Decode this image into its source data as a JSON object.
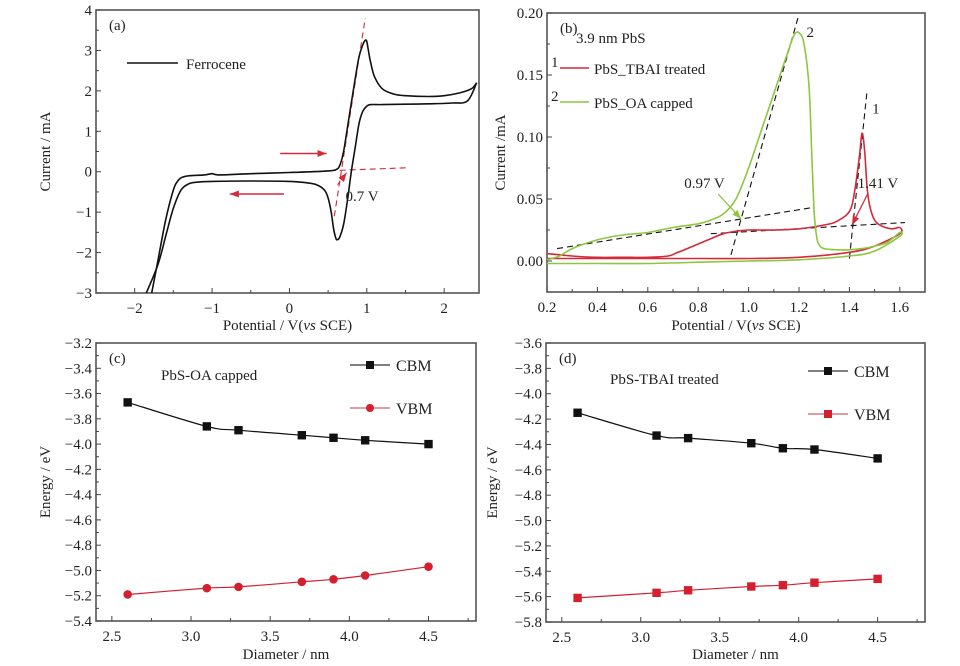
{
  "chart_data": [
    {
      "id": "a",
      "type": "line",
      "panel_label": "(a)",
      "xlabel": "Potential / V(vs SCE)",
      "xlabel_parts": [
        "Potential / V(",
        "vs",
        " SCE)"
      ],
      "ylabel": "Current / mA",
      "xlim": [
        -2.5,
        2.45
      ],
      "ylim": [
        -3,
        4
      ],
      "xticks": [
        -2,
        -1,
        0,
        1,
        2
      ],
      "xtick_labels": [
        "−2",
        "−1",
        "0",
        "1",
        "2"
      ],
      "xminor": [
        -1.5,
        -0.5,
        0.5,
        1.5
      ],
      "yticks": [
        -3,
        -2,
        -1,
        0,
        1,
        2,
        3,
        4
      ],
      "ytick_labels": [
        "−3",
        "−2",
        "−1",
        "0",
        "1",
        "2",
        "3",
        "4"
      ],
      "yminor": [
        -2.5,
        -1.5,
        -0.5,
        0.5,
        1.5,
        2.5,
        3.5
      ],
      "legend": [
        {
          "label": "Ferrocene",
          "color": "#111111"
        }
      ],
      "legend_position": "top-left",
      "series": [
        {
          "name": "Ferrocene forward scan",
          "color": "#111111",
          "x": [
            -1.78,
            -1.7,
            -1.6,
            -1.5,
            -1.45,
            -1.4,
            -1.3,
            -1.1,
            -1.0,
            -0.9,
            -0.5,
            0.0,
            0.3,
            0.5,
            0.6,
            0.65,
            0.7,
            0.75,
            0.8,
            0.85,
            0.9,
            0.95,
            0.98,
            1.0,
            1.02,
            1.05,
            1.1,
            1.2,
            1.35,
            1.5,
            1.8,
            2.0,
            2.2,
            2.35,
            2.42
          ],
          "y": [
            -3.0,
            -2.2,
            -1.2,
            -0.45,
            -0.25,
            -0.15,
            -0.1,
            -0.08,
            -0.05,
            -0.08,
            -0.05,
            -0.02,
            0.0,
            0.02,
            0.05,
            0.15,
            0.5,
            1.1,
            1.7,
            2.3,
            2.85,
            3.15,
            3.25,
            3.22,
            3.0,
            2.7,
            2.35,
            2.05,
            1.92,
            1.88,
            1.86,
            1.88,
            1.95,
            2.05,
            2.2
          ]
        },
        {
          "name": "Ferrocene reverse scan",
          "color": "#111111",
          "x": [
            2.42,
            2.3,
            2.1,
            1.8,
            1.5,
            1.2,
            1.05,
            1.0,
            0.95,
            0.9,
            0.85,
            0.8,
            0.75,
            0.7,
            0.65,
            0.62,
            0.6,
            0.57,
            0.54,
            0.5,
            0.45,
            0.35,
            0.2,
            0.0,
            -0.5,
            -1.0,
            -1.2,
            -1.3,
            -1.4,
            -1.5,
            -1.6,
            -1.7,
            -1.85
          ],
          "y": [
            2.2,
            1.75,
            1.7,
            1.68,
            1.67,
            1.66,
            1.66,
            1.62,
            1.5,
            1.2,
            0.6,
            0.0,
            -0.7,
            -1.3,
            -1.62,
            -1.68,
            -1.65,
            -1.4,
            -1.0,
            -0.65,
            -0.45,
            -0.32,
            -0.27,
            -0.24,
            -0.23,
            -0.24,
            -0.26,
            -0.3,
            -0.45,
            -0.9,
            -1.6,
            -2.3,
            -3.0
          ]
        }
      ],
      "annotations": [
        {
          "text": "0.7 V",
          "x": 0.7,
          "y": 0.05,
          "label_x": 0.88,
          "label_y": -0.62,
          "color": "#d42a3a"
        }
      ],
      "tangent_lines": [
        {
          "x": [
            0.58,
            0.98
          ],
          "y": [
            -1.1,
            3.8
          ],
          "color": "#d42a3a"
        },
        {
          "x": [
            -0.9,
            1.55
          ],
          "y": [
            -0.08,
            0.1
          ],
          "color": "#d42a3a"
        }
      ],
      "scan_arrows": [
        {
          "x": [
            -0.12,
            0.48
          ],
          "y": [
            0.45,
            0.45
          ],
          "direction": "right",
          "color": "#d42a3a"
        },
        {
          "x": [
            -0.07,
            -0.77
          ],
          "y": [
            -0.55,
            -0.55
          ],
          "direction": "left",
          "color": "#d42a3a"
        }
      ]
    },
    {
      "id": "b",
      "type": "line",
      "panel_label": "(b)",
      "subtitle": "3.9 nm PbS",
      "xlabel": "Potential / V(vs SCE)",
      "xlabel_parts": [
        "Potential / V(",
        "vs",
        " SCE)"
      ],
      "ylabel": "Current /mA",
      "xlim": [
        0.2,
        1.7
      ],
      "ylim": [
        -0.025,
        0.2
      ],
      "xticks": [
        0.2,
        0.4,
        0.6,
        0.8,
        1.0,
        1.2,
        1.4,
        1.6
      ],
      "xtick_labels": [
        "0.2",
        "0.4",
        "0.6",
        "0.8",
        "1.0",
        "1.2",
        "1.4",
        "1.6"
      ],
      "xminor": [
        0.3,
        0.5,
        0.7,
        0.9,
        1.1,
        1.3,
        1.5
      ],
      "yticks": [
        0.0,
        0.05,
        0.1,
        0.15,
        0.2
      ],
      "ytick_labels": [
        "0.00",
        "0.05",
        "0.10",
        "0.15",
        "0.20"
      ],
      "yminor": [
        0.025,
        0.075,
        0.125,
        0.175
      ],
      "legend": [
        {
          "index": "1",
          "label": "PbS_TBAI treated",
          "color": "#d42a3a"
        },
        {
          "index": "2",
          "label": "PbS_OA capped",
          "color": "#8dc63f"
        }
      ],
      "legend_position": "top-left",
      "series": [
        {
          "name": "PbS_TBAI treated",
          "color": "#d42a3a",
          "x": [
            0.2,
            0.3,
            0.4,
            0.5,
            0.6,
            0.68,
            0.72,
            0.78,
            0.85,
            0.9,
            0.95,
            1.0,
            1.1,
            1.2,
            1.3,
            1.35,
            1.4,
            1.42,
            1.44,
            1.45,
            1.46,
            1.47,
            1.48,
            1.5,
            1.53,
            1.57,
            1.6,
            1.6,
            1.5,
            1.4,
            1.2,
            1.0,
            0.8,
            0.6,
            0.4,
            0.2
          ],
          "y": [
            0.006,
            0.004,
            0.003,
            0.003,
            0.003,
            0.004,
            0.007,
            0.012,
            0.018,
            0.022,
            0.024,
            0.025,
            0.025,
            0.026,
            0.029,
            0.032,
            0.04,
            0.055,
            0.085,
            0.103,
            0.09,
            0.06,
            0.045,
            0.033,
            0.028,
            0.026,
            0.027,
            0.022,
            0.012,
            0.007,
            0.003,
            0.002,
            0.002,
            0.002,
            0.002,
            0.002
          ]
        },
        {
          "name": "PbS_OA capped",
          "color": "#8dc63f",
          "x": [
            0.2,
            0.25,
            0.3,
            0.4,
            0.5,
            0.6,
            0.7,
            0.8,
            0.85,
            0.9,
            0.95,
            1.0,
            1.05,
            1.1,
            1.15,
            1.18,
            1.2,
            1.22,
            1.24,
            1.25,
            1.26,
            1.27,
            1.28,
            1.3,
            1.35,
            1.4,
            1.45,
            1.5,
            1.55,
            1.6,
            1.6,
            1.5,
            1.4,
            1.2,
            1.0,
            0.8,
            0.6,
            0.4,
            0.2
          ],
          "y": [
            0.001,
            0.004,
            0.01,
            0.017,
            0.021,
            0.023,
            0.027,
            0.03,
            0.033,
            0.038,
            0.05,
            0.075,
            0.105,
            0.135,
            0.165,
            0.182,
            0.184,
            0.175,
            0.14,
            0.09,
            0.04,
            0.02,
            0.013,
            0.01,
            0.009,
            0.009,
            0.01,
            0.012,
            0.015,
            0.023,
            0.02,
            0.008,
            0.004,
            0.001,
            0.0,
            -0.001,
            -0.002,
            -0.002,
            -0.002
          ]
        }
      ],
      "annotations": [
        {
          "text": "0.97 V",
          "x": 0.97,
          "y": 0.034,
          "label_x": 0.8,
          "label_y": 0.058,
          "color": "#8dc63f"
        },
        {
          "text": "1.41 V",
          "x": 1.41,
          "y": 0.029,
          "label_x": 1.52,
          "label_y": 0.058,
          "color": "#d42a3a"
        },
        {
          "text": "2",
          "x": 1.23,
          "y": 0.184,
          "color": "#222222"
        },
        {
          "text": "1",
          "x": 1.49,
          "y": 0.122,
          "color": "#222222"
        }
      ],
      "tangent_lines": [
        {
          "x": [
            0.93,
            1.2
          ],
          "y": [
            0.005,
            0.199
          ],
          "color": "#111111"
        },
        {
          "x": [
            0.24,
            1.25
          ],
          "y": [
            0.01,
            0.043
          ],
          "color": "#111111"
        },
        {
          "x": [
            1.4,
            1.47
          ],
          "y": [
            0.002,
            0.137
          ],
          "color": "#111111"
        },
        {
          "x": [
            0.85,
            1.62
          ],
          "y": [
            0.022,
            0.031
          ],
          "color": "#111111"
        }
      ]
    },
    {
      "id": "c",
      "type": "line",
      "panel_label": "(c)",
      "subtitle": "PbS-OA capped",
      "xlabel": "Diameter / nm",
      "ylabel": "Energy / eV",
      "xlim": [
        2.4,
        4.8
      ],
      "ylim": [
        -5.4,
        -3.2
      ],
      "xticks": [
        2.5,
        3.0,
        3.5,
        4.0,
        4.5
      ],
      "xtick_labels": [
        "2.5",
        "3.0",
        "3.5",
        "4.0",
        "4.5"
      ],
      "xminor": [
        2.75,
        3.25,
        3.75,
        4.25,
        4.75
      ],
      "yticks": [
        -5.4,
        -5.2,
        -5.0,
        -4.8,
        -4.6,
        -4.4,
        -4.2,
        -4.0,
        -3.8,
        -3.6,
        -3.4,
        -3.2
      ],
      "ytick_labels": [
        "−5.4",
        "−5.2",
        "−5.0",
        "−4.8",
        "−4.6",
        "−4.4",
        "−4.2",
        "−4.0",
        "−3.8",
        "−3.6",
        "−3.4",
        "−3.2"
      ],
      "yminor": [
        -5.3,
        -5.1,
        -4.9,
        -4.7,
        -4.5,
        -4.3,
        -4.1,
        -3.9,
        -3.7,
        -3.5,
        -3.3
      ],
      "legend_position": "top-right",
      "x": [
        2.6,
        3.1,
        3.3,
        3.7,
        3.9,
        4.1,
        4.5
      ],
      "series": [
        {
          "name": "CBM",
          "color": "#111111",
          "marker": "square",
          "values": [
            -3.67,
            -3.86,
            -3.89,
            -3.93,
            -3.95,
            -3.97,
            -4.0
          ]
        },
        {
          "name": "VBM",
          "color": "#d4202e",
          "marker": "circle",
          "values": [
            -5.19,
            -5.14,
            -5.13,
            -5.09,
            -5.07,
            -5.04,
            -4.97
          ]
        }
      ]
    },
    {
      "id": "d",
      "type": "line",
      "panel_label": "(d)",
      "subtitle": "PbS-TBAI treated",
      "xlabel": "Diameter / nm",
      "ylabel": "Energy / eV",
      "xlim": [
        2.4,
        4.8
      ],
      "ylim": [
        -5.8,
        -3.6
      ],
      "xticks": [
        2.5,
        3.0,
        3.5,
        4.0,
        4.5
      ],
      "xtick_labels": [
        "2.5",
        "3.0",
        "3.5",
        "4.0",
        "4.5"
      ],
      "xminor": [
        2.75,
        3.25,
        3.75,
        4.25,
        4.75
      ],
      "yticks": [
        -5.8,
        -5.6,
        -5.4,
        -5.2,
        -5.0,
        -4.8,
        -4.6,
        -4.4,
        -4.2,
        -4.0,
        -3.8,
        -3.6
      ],
      "ytick_labels": [
        "−5.8",
        "−5.6",
        "−5.4",
        "−5.2",
        "−5.0",
        "−4.8",
        "−4.6",
        "−4.4",
        "−4.2",
        "−4.0",
        "−3.8",
        "−3.6"
      ],
      "yminor": [
        -5.7,
        -5.5,
        -5.3,
        -5.1,
        -4.9,
        -4.7,
        -4.5,
        -4.3,
        -4.1,
        -3.9,
        -3.7
      ],
      "legend_position": "top-right",
      "x": [
        2.6,
        3.1,
        3.3,
        3.7,
        3.9,
        4.1,
        4.5
      ],
      "series": [
        {
          "name": "CBM",
          "color": "#111111",
          "marker": "square",
          "values": [
            -4.15,
            -4.33,
            -4.35,
            -4.39,
            -4.43,
            -4.44,
            -4.51
          ]
        },
        {
          "name": "VBM",
          "color": "#d4202e",
          "marker": "square",
          "values": [
            -5.61,
            -5.57,
            -5.55,
            -5.52,
            -5.51,
            -5.49,
            -5.46
          ]
        }
      ]
    }
  ]
}
